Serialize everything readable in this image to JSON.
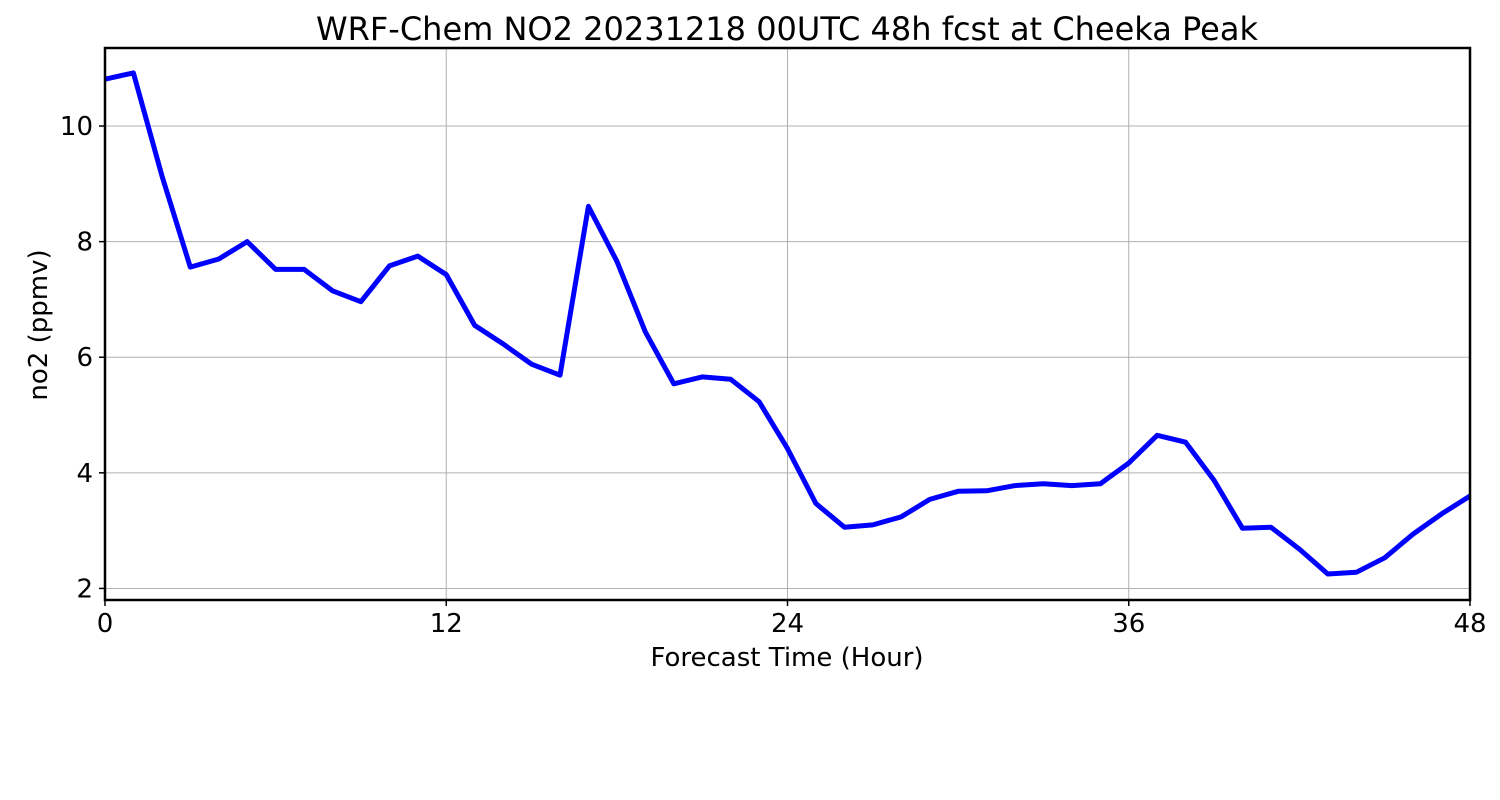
{
  "chart_data": {
    "type": "line",
    "title": "WRF-Chem NO2  20231218 00UTC 48h fcst at Cheeka Peak",
    "xlabel": "Forecast Time (Hour)",
    "ylabel": "no2  (ppmv)",
    "xlim": [
      0,
      48
    ],
    "ylim": [
      1.8,
      11.35
    ],
    "xticks": [
      0,
      12,
      24,
      36,
      48
    ],
    "yticks": [
      2,
      4,
      6,
      8,
      10
    ],
    "grid": true,
    "series": [
      {
        "color": "#0000ff",
        "x": [
          0,
          1,
          2,
          3,
          4,
          5,
          6,
          7,
          8,
          9,
          10,
          11,
          12,
          13,
          14,
          15,
          16,
          17,
          18,
          19,
          20,
          21,
          22,
          23,
          24,
          25,
          26,
          27,
          28,
          29,
          30,
          31,
          32,
          33,
          34,
          35,
          36,
          37,
          38,
          39,
          40,
          41,
          42,
          43,
          44,
          45,
          46,
          47,
          48
        ],
        "values": [
          10.81,
          10.92,
          9.14,
          7.56,
          7.7,
          8.0,
          7.52,
          7.52,
          7.15,
          6.96,
          7.58,
          7.75,
          7.43,
          6.55,
          6.23,
          5.88,
          5.69,
          8.61,
          7.66,
          6.44,
          5.54,
          5.66,
          5.62,
          5.23,
          4.42,
          3.47,
          3.06,
          3.1,
          3.24,
          3.54,
          3.68,
          3.69,
          3.78,
          3.81,
          3.78,
          3.81,
          4.17,
          4.65,
          4.53,
          3.87,
          3.04,
          3.06,
          2.68,
          2.25,
          2.28,
          2.53,
          2.94,
          3.29,
          3.6
        ]
      }
    ]
  }
}
